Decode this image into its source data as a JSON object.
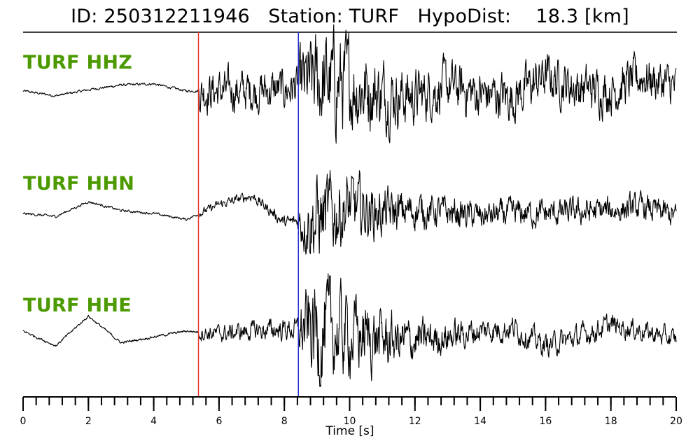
{
  "title": {
    "id_label": "ID: 250312211946",
    "station_label": "Station: TURF",
    "hypodist_label": "HypoDist:",
    "hypodist_value": "18.3 [km]"
  },
  "chart_data": {
    "type": "line",
    "xlabel": "Time [s]",
    "xlim": [
      0,
      20
    ],
    "x_major_ticks": [
      0,
      2,
      4,
      6,
      8,
      10,
      12,
      14,
      16,
      18,
      20
    ],
    "x_minor_step": 0.4,
    "tick_labels": [
      "0",
      "2",
      "4",
      "6",
      "8",
      "10",
      "12",
      "14",
      "16",
      "18",
      "20"
    ],
    "p_pick_time": 5.37,
    "p_pick_color": "#e8322d",
    "s_pick_time": 8.43,
    "s_pick_color": "#2030c8",
    "trace_color": "#000000",
    "label_color": "#4c9a00",
    "series": [
      {
        "name": "TURF HHZ",
        "envelope_t": [
          0,
          5.35,
          5.4,
          8.4,
          8.5,
          9.0,
          9.6,
          10.5,
          11.5,
          12.5,
          14.0,
          20
        ],
        "envelope_amp": [
          0.02,
          0.02,
          0.32,
          0.32,
          0.55,
          0.78,
          0.8,
          0.62,
          0.48,
          0.4,
          0.38,
          0.34
        ],
        "long_period_t": [
          0,
          1,
          2,
          3,
          4,
          5,
          6,
          7,
          8,
          9,
          10,
          11,
          12,
          13,
          14,
          15,
          16,
          17,
          18,
          19,
          20
        ],
        "long_period_v": [
          0,
          -0.08,
          0.02,
          0.1,
          0.12,
          0.0,
          0.0,
          0.0,
          0.02,
          0.15,
          0.1,
          -0.05,
          -0.1,
          0.08,
          -0.05,
          -0.1,
          0.25,
          0.05,
          0.0,
          0.25,
          0.05
        ]
      },
      {
        "name": "TURF HHN",
        "envelope_t": [
          0,
          5.35,
          5.4,
          8.4,
          8.5,
          9.0,
          9.6,
          10.5,
          11.5,
          12.5,
          14.0,
          20
        ],
        "envelope_amp": [
          0.02,
          0.02,
          0.06,
          0.1,
          0.4,
          0.7,
          0.6,
          0.45,
          0.32,
          0.25,
          0.22,
          0.2
        ],
        "long_period_t": [
          0,
          1,
          2,
          3,
          4,
          5,
          6,
          7,
          8,
          9,
          10,
          11,
          12,
          13,
          14,
          15,
          16,
          17,
          18,
          19,
          20
        ],
        "long_period_v": [
          0.0,
          -0.05,
          0.2,
          0.05,
          0.0,
          -0.1,
          0.15,
          0.3,
          -0.15,
          -0.1,
          0.1,
          0.0,
          0.05,
          0.02,
          -0.05,
          0.0,
          0.0,
          0.02,
          0.05,
          0.1,
          -0.05
        ]
      },
      {
        "name": "TURF HHE",
        "envelope_t": [
          0,
          5.35,
          5.4,
          8.4,
          8.5,
          9.0,
          9.6,
          10.5,
          11.5,
          12.5,
          14.0,
          20
        ],
        "envelope_amp": [
          0.02,
          0.02,
          0.12,
          0.18,
          0.5,
          0.85,
          0.7,
          0.55,
          0.38,
          0.28,
          0.2,
          0.15
        ],
        "long_period_t": [
          0,
          1,
          2,
          3,
          4,
          5,
          6,
          7,
          8,
          9,
          10,
          11,
          12,
          13,
          14,
          15,
          16,
          17,
          18,
          19,
          20
        ],
        "long_period_v": [
          0.05,
          -0.2,
          0.3,
          -0.15,
          -0.05,
          0.05,
          0.0,
          0.05,
          0.08,
          0.05,
          0.0,
          -0.1,
          -0.12,
          -0.05,
          0.05,
          0.1,
          -0.2,
          -0.05,
          0.15,
          0.05,
          -0.1
        ]
      }
    ]
  }
}
